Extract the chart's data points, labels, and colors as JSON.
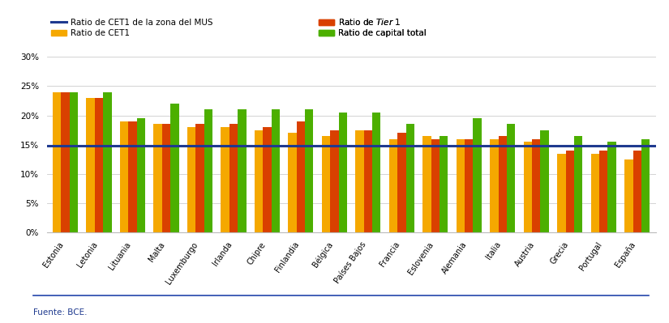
{
  "countries": [
    "Estonia",
    "Letonia",
    "Lituania",
    "Malta",
    "Luxemburgo",
    "Irlanda",
    "Chipre",
    "Finlandia",
    "Bélgica",
    "Países Bajos",
    "Francia",
    "Eslovenia",
    "Alemania",
    "Italia",
    "Austria",
    "Grecia",
    "Portugal",
    "España"
  ],
  "cet1": [
    24.0,
    23.0,
    19.0,
    18.5,
    18.0,
    18.0,
    17.5,
    17.0,
    16.5,
    17.5,
    16.0,
    16.5,
    16.0,
    16.0,
    15.5,
    13.5,
    13.5,
    12.5
  ],
  "tier1": [
    24.0,
    23.0,
    19.0,
    18.5,
    18.5,
    18.5,
    18.0,
    19.0,
    17.5,
    17.5,
    17.0,
    16.0,
    16.0,
    16.5,
    16.0,
    14.0,
    14.0,
    14.0
  ],
  "total_capital": [
    24.0,
    24.0,
    19.5,
    22.0,
    21.0,
    21.0,
    21.0,
    21.0,
    20.5,
    20.5,
    18.5,
    16.5,
    19.5,
    18.5,
    17.5,
    16.5,
    15.5,
    16.0
  ],
  "mus_line": 14.9,
  "bar_color_cet1": "#F5A800",
  "bar_color_tier1": "#D94000",
  "bar_color_total": "#4CAF00",
  "line_color": "#1F3A8F",
  "background_color": "#FFFFFF",
  "grid_color": "#CCCCCC",
  "ylabel_ticks": [
    "0%",
    "5%",
    "10%",
    "15%",
    "20%",
    "25%",
    "30%"
  ],
  "yticks": [
    0,
    5,
    10,
    15,
    20,
    25,
    30
  ],
  "ylim": [
    0,
    32
  ],
  "legend_labels": [
    "Ratio de CET1 de la zona del MUS",
    "Ratio de CET1",
    "Ratio de Tier 1",
    "Ratio de capital total"
  ],
  "legend_tier1_italic": "Tier 1",
  "source_text": "Fuente: BCE.",
  "bar_width": 0.25,
  "figsize": [
    8.25,
    3.99
  ],
  "dpi": 100
}
